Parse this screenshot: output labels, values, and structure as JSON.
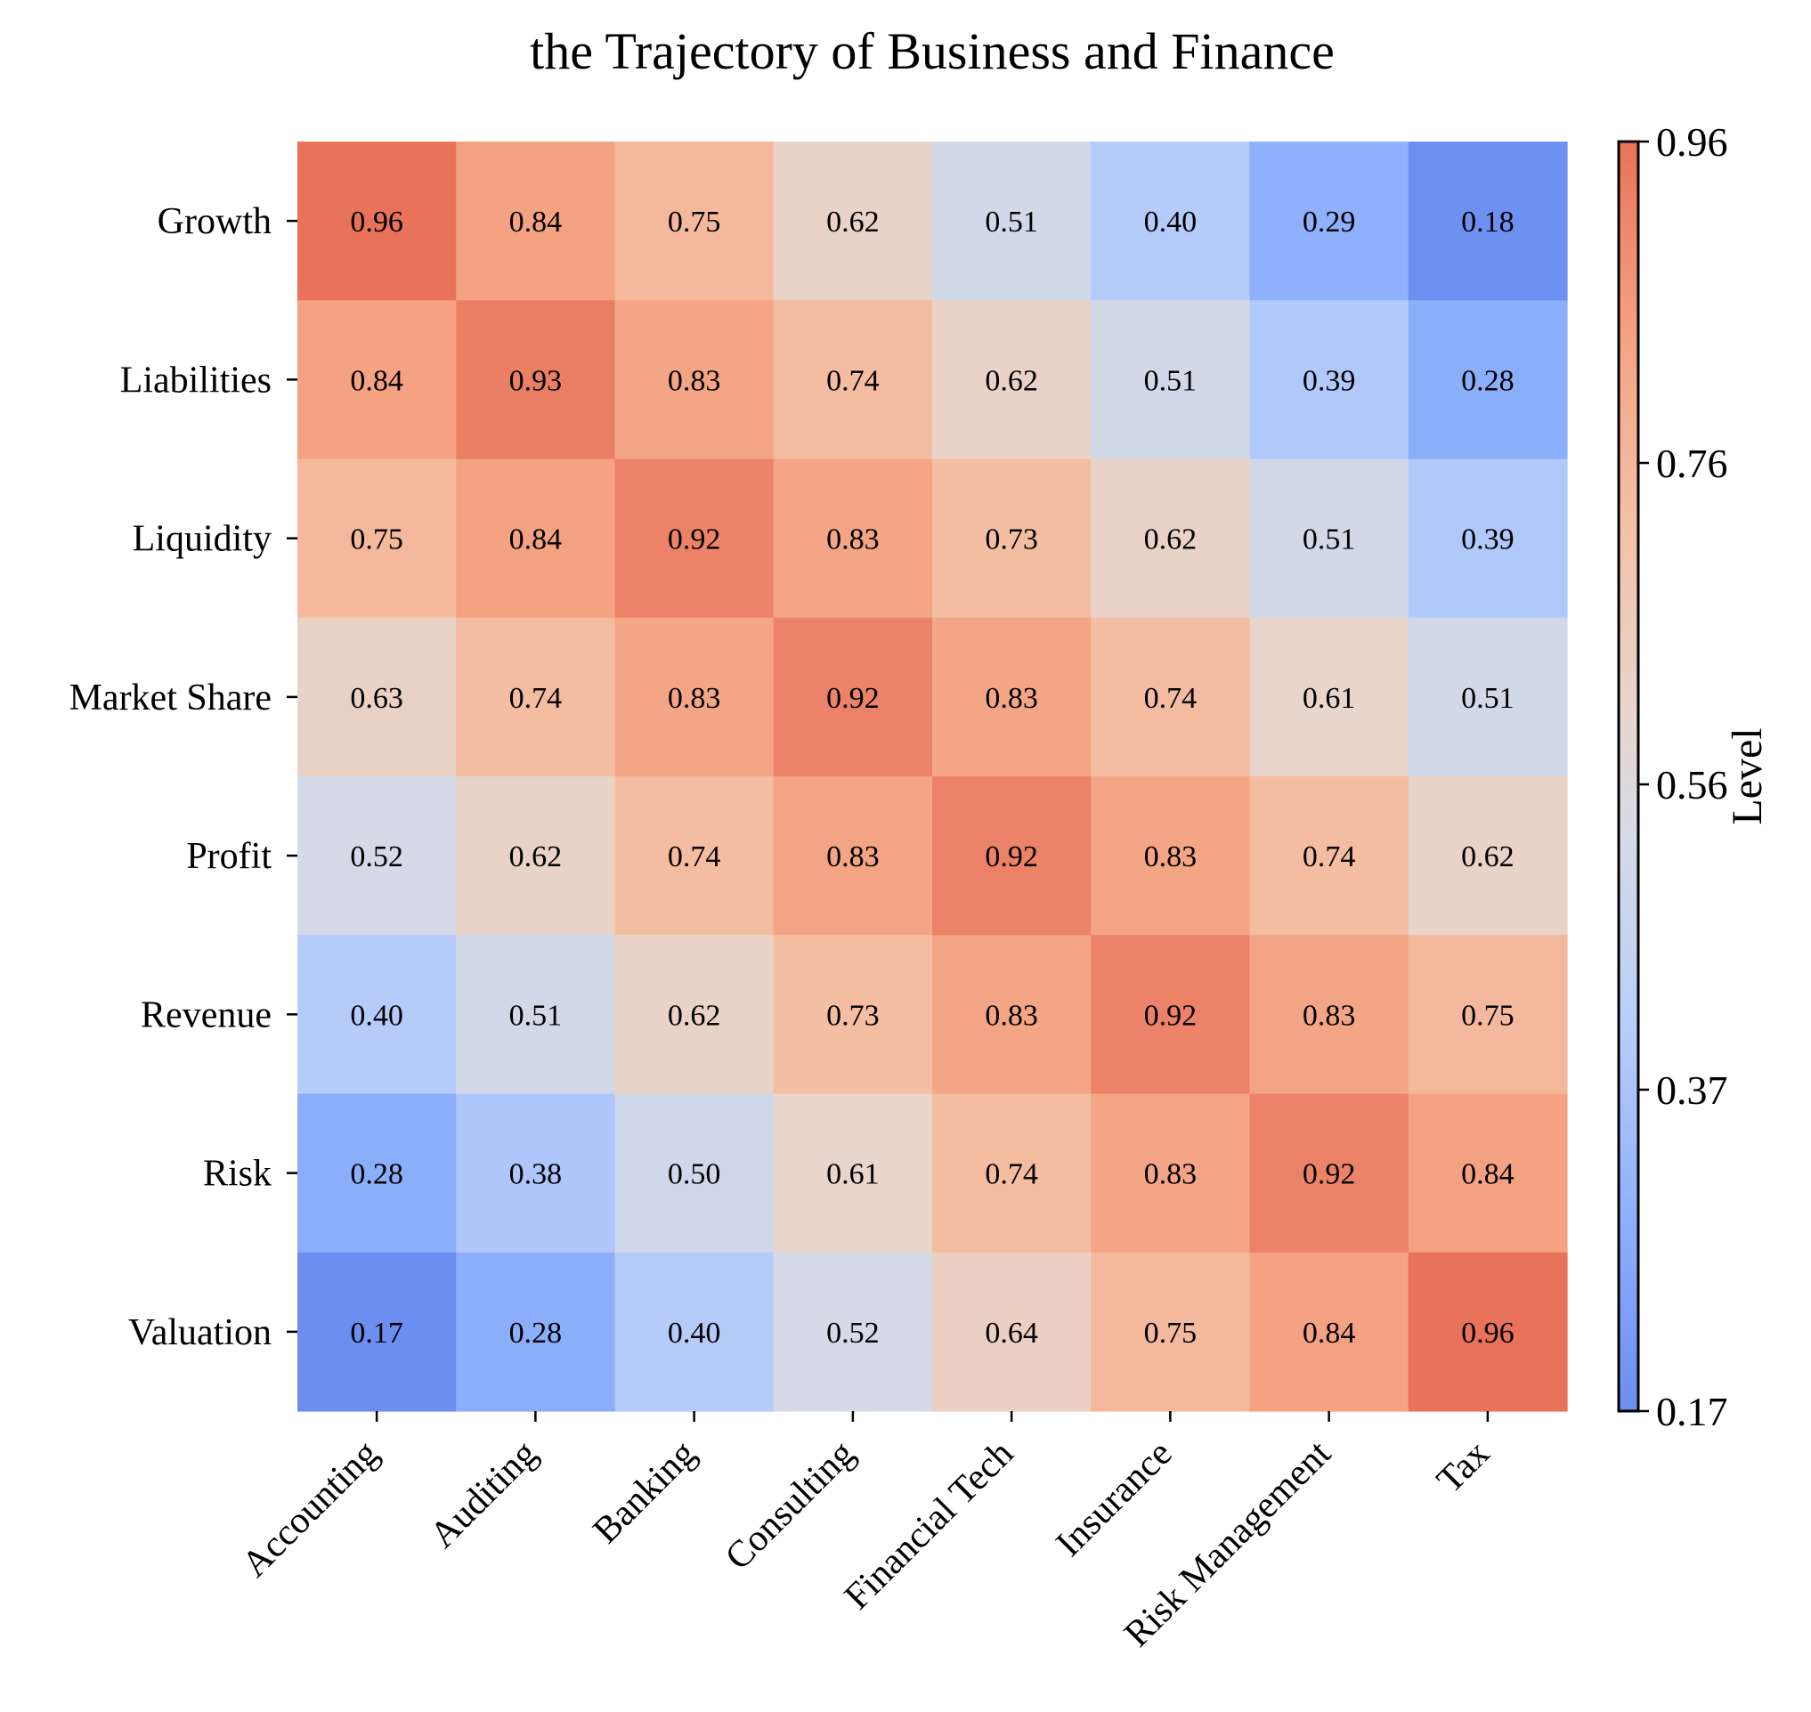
{
  "chart_data": {
    "type": "heatmap",
    "title": "the Trajectory of Business and Finance",
    "xlabel": "",
    "ylabel": "",
    "x_categories": [
      "Accounting",
      "Auditing",
      "Banking",
      "Consulting",
      "Financial Tech",
      "Insurance",
      "Risk Management",
      "Tax"
    ],
    "y_categories": [
      "Growth",
      "Liabilities",
      "Liquidity",
      "Market Share",
      "Profit",
      "Revenue",
      "Risk",
      "Valuation"
    ],
    "values": [
      [
        0.96,
        0.84,
        0.75,
        0.62,
        0.51,
        0.4,
        0.29,
        0.18
      ],
      [
        0.84,
        0.93,
        0.83,
        0.74,
        0.62,
        0.51,
        0.39,
        0.28
      ],
      [
        0.75,
        0.84,
        0.92,
        0.83,
        0.73,
        0.62,
        0.51,
        0.39
      ],
      [
        0.63,
        0.74,
        0.83,
        0.92,
        0.83,
        0.74,
        0.61,
        0.51
      ],
      [
        0.52,
        0.62,
        0.74,
        0.83,
        0.92,
        0.83,
        0.74,
        0.62
      ],
      [
        0.4,
        0.51,
        0.62,
        0.73,
        0.83,
        0.92,
        0.83,
        0.75
      ],
      [
        0.28,
        0.38,
        0.5,
        0.61,
        0.74,
        0.83,
        0.92,
        0.84
      ],
      [
        0.17,
        0.28,
        0.4,
        0.52,
        0.64,
        0.75,
        0.84,
        0.96
      ]
    ],
    "value_format": "2 decimals",
    "colorbar": {
      "label": "Level",
      "range": [
        0.17,
        0.96
      ],
      "ticks": [
        "0.17",
        "0.37",
        "0.56",
        "0.76",
        "0.96"
      ],
      "colormap": "coolwarm",
      "colormap_stops": [
        [
          0.0,
          "#6b8ef0"
        ],
        [
          0.15,
          "#8eb0fb"
        ],
        [
          0.3,
          "#b7cdfa"
        ],
        [
          0.45,
          "#d5dbe6"
        ],
        [
          0.55,
          "#e7d6ce"
        ],
        [
          0.7,
          "#f4c0a5"
        ],
        [
          0.85,
          "#f4a282"
        ],
        [
          1.0,
          "#e8735a"
        ]
      ]
    },
    "grid": false
  }
}
